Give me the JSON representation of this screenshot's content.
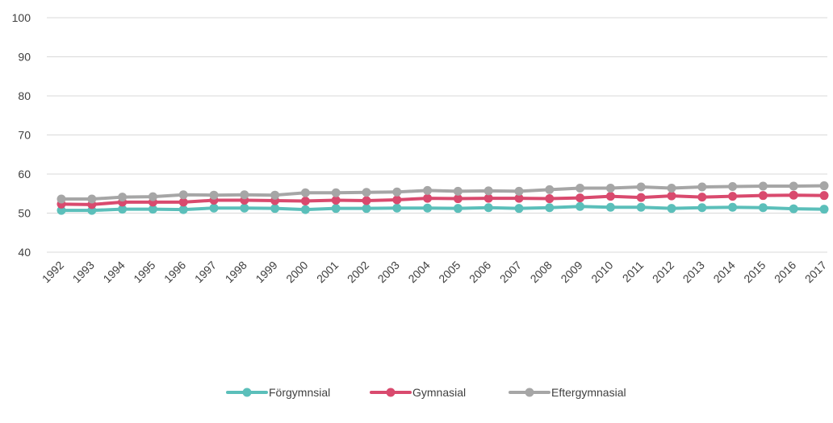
{
  "chart_data": {
    "type": "line",
    "title": "",
    "xlabel": "",
    "ylabel": "",
    "ylim": [
      40,
      100
    ],
    "yticks": [
      40,
      50,
      60,
      70,
      80,
      90,
      100
    ],
    "grid": true,
    "legend": "bottom-center",
    "x": [
      "1992",
      "1993",
      "1994",
      "1995",
      "1996",
      "1997",
      "1998",
      "1999",
      "2000",
      "2001",
      "2002",
      "2003",
      "2004",
      "2005",
      "2006",
      "2007",
      "2008",
      "2009",
      "2010",
      "2011",
      "2012",
      "2013",
      "2014",
      "2015",
      "2016",
      "2017"
    ],
    "series": [
      {
        "name": "Förgymnsial",
        "color": "#5bbfba",
        "values": [
          50.7,
          50.7,
          51.0,
          51.0,
          50.9,
          51.3,
          51.3,
          51.2,
          50.9,
          51.2,
          51.2,
          51.3,
          51.3,
          51.2,
          51.4,
          51.2,
          51.4,
          51.7,
          51.5,
          51.5,
          51.2,
          51.4,
          51.5,
          51.4,
          51.1,
          51.0
        ]
      },
      {
        "name": "Gymnasial",
        "color": "#d94a6e",
        "values": [
          52.3,
          52.2,
          52.8,
          52.8,
          52.8,
          53.3,
          53.3,
          53.2,
          53.1,
          53.3,
          53.2,
          53.4,
          53.8,
          53.7,
          53.8,
          53.8,
          53.7,
          53.9,
          54.3,
          54.0,
          54.4,
          54.1,
          54.3,
          54.5,
          54.6,
          54.5
        ]
      },
      {
        "name": "Eftergymnasial",
        "color": "#a6a6a6",
        "values": [
          53.6,
          53.6,
          54.1,
          54.2,
          54.7,
          54.6,
          54.7,
          54.6,
          55.2,
          55.2,
          55.3,
          55.4,
          55.8,
          55.6,
          55.7,
          55.6,
          56.0,
          56.4,
          56.4,
          56.7,
          56.4,
          56.7,
          56.8,
          56.9,
          56.9,
          57.0
        ]
      }
    ]
  }
}
